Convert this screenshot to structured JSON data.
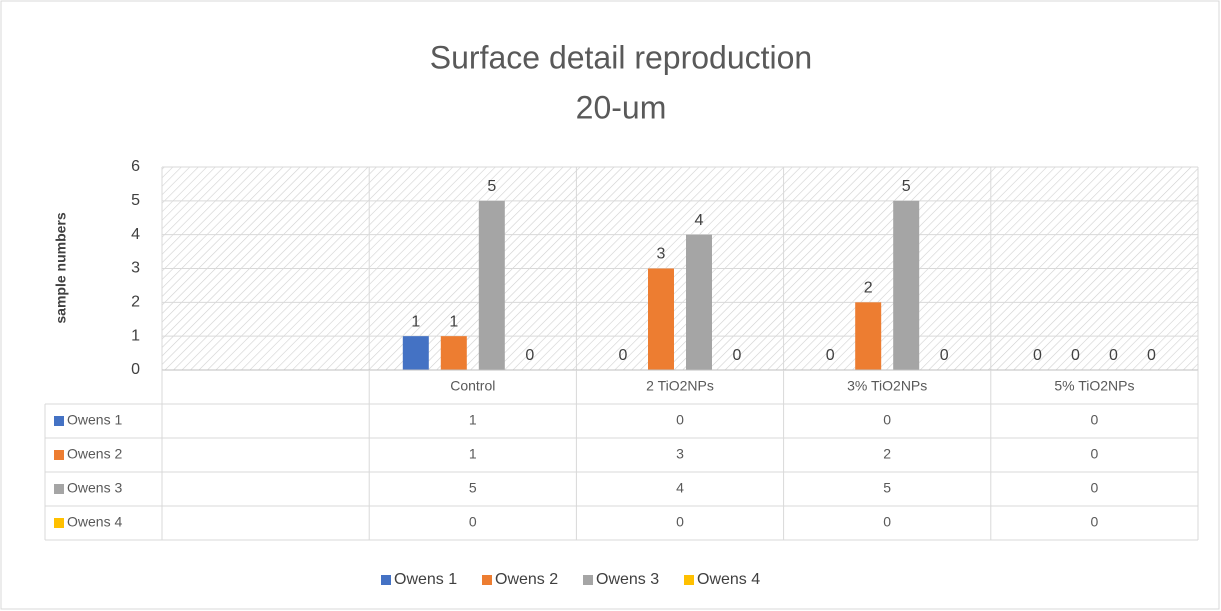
{
  "chart_data": {
    "type": "bar",
    "title": "Surface detail reproduction",
    "subtitle": "20-um",
    "y_label": "sample numbers",
    "categories": [
      null,
      "Control",
      "2  TiO2NPs",
      "3%  TiO2NPs",
      "5%  TiO2NPs"
    ],
    "series": [
      {
        "name": "Owens 1",
        "color": "#4472c4",
        "values": [
          null,
          1,
          0,
          0,
          0
        ]
      },
      {
        "name": "Owens 2",
        "color": "#ed7d31",
        "values": [
          null,
          1,
          3,
          2,
          0
        ]
      },
      {
        "name": "Owens 3",
        "color": "#a5a5a5",
        "values": [
          null,
          5,
          4,
          5,
          0
        ]
      },
      {
        "name": "Owens 4",
        "color": "#ffc000",
        "values": [
          null,
          0,
          0,
          0,
          0
        ]
      }
    ],
    "ylim": [
      0,
      6
    ],
    "yticks": [
      0,
      1,
      2,
      3,
      4,
      5,
      6
    ],
    "grid": true,
    "data_table": true,
    "legend": "bottom"
  }
}
